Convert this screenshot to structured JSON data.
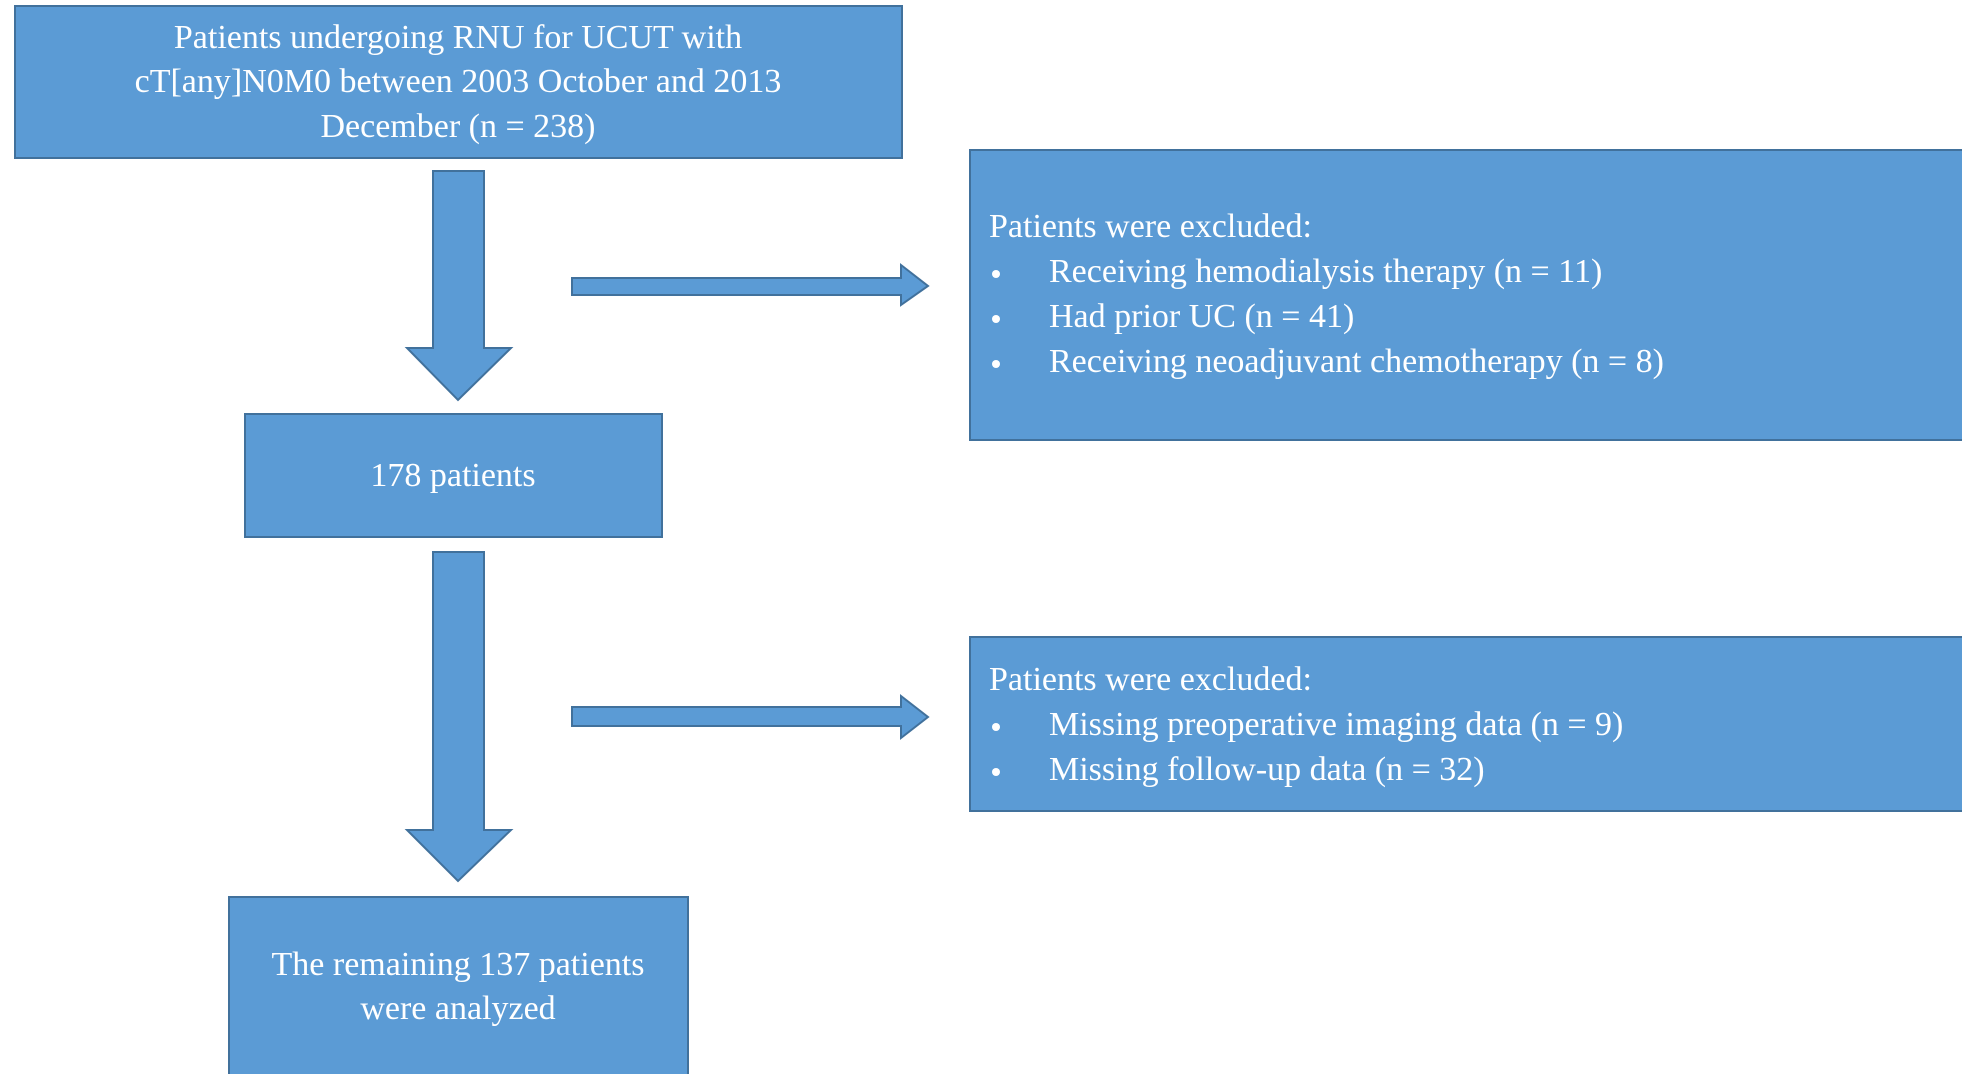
{
  "nodes": [
    {
      "lines": [
        "Patients undergoing RNU for UCUT with",
        "cT[any]N0M0 between 2003 October and 2013",
        "December (n = 238)"
      ]
    },
    {
      "lines": [
        "178 patients"
      ]
    },
    {
      "lines": [
        "The remaining 137 patients",
        "were analyzed"
      ]
    }
  ],
  "exclusions": [
    {
      "heading": "Patients were excluded:",
      "items": [
        "Receiving hemodialysis therapy (n = 11)",
        "Had prior UC (n = 41)",
        "Receiving neoadjuvant chemotherapy (n = 8)"
      ]
    },
    {
      "heading": "Patients were excluded:",
      "items": [
        "Missing preoperative imaging data (n = 9)",
        "Missing follow-up data (n = 32)"
      ]
    }
  ]
}
